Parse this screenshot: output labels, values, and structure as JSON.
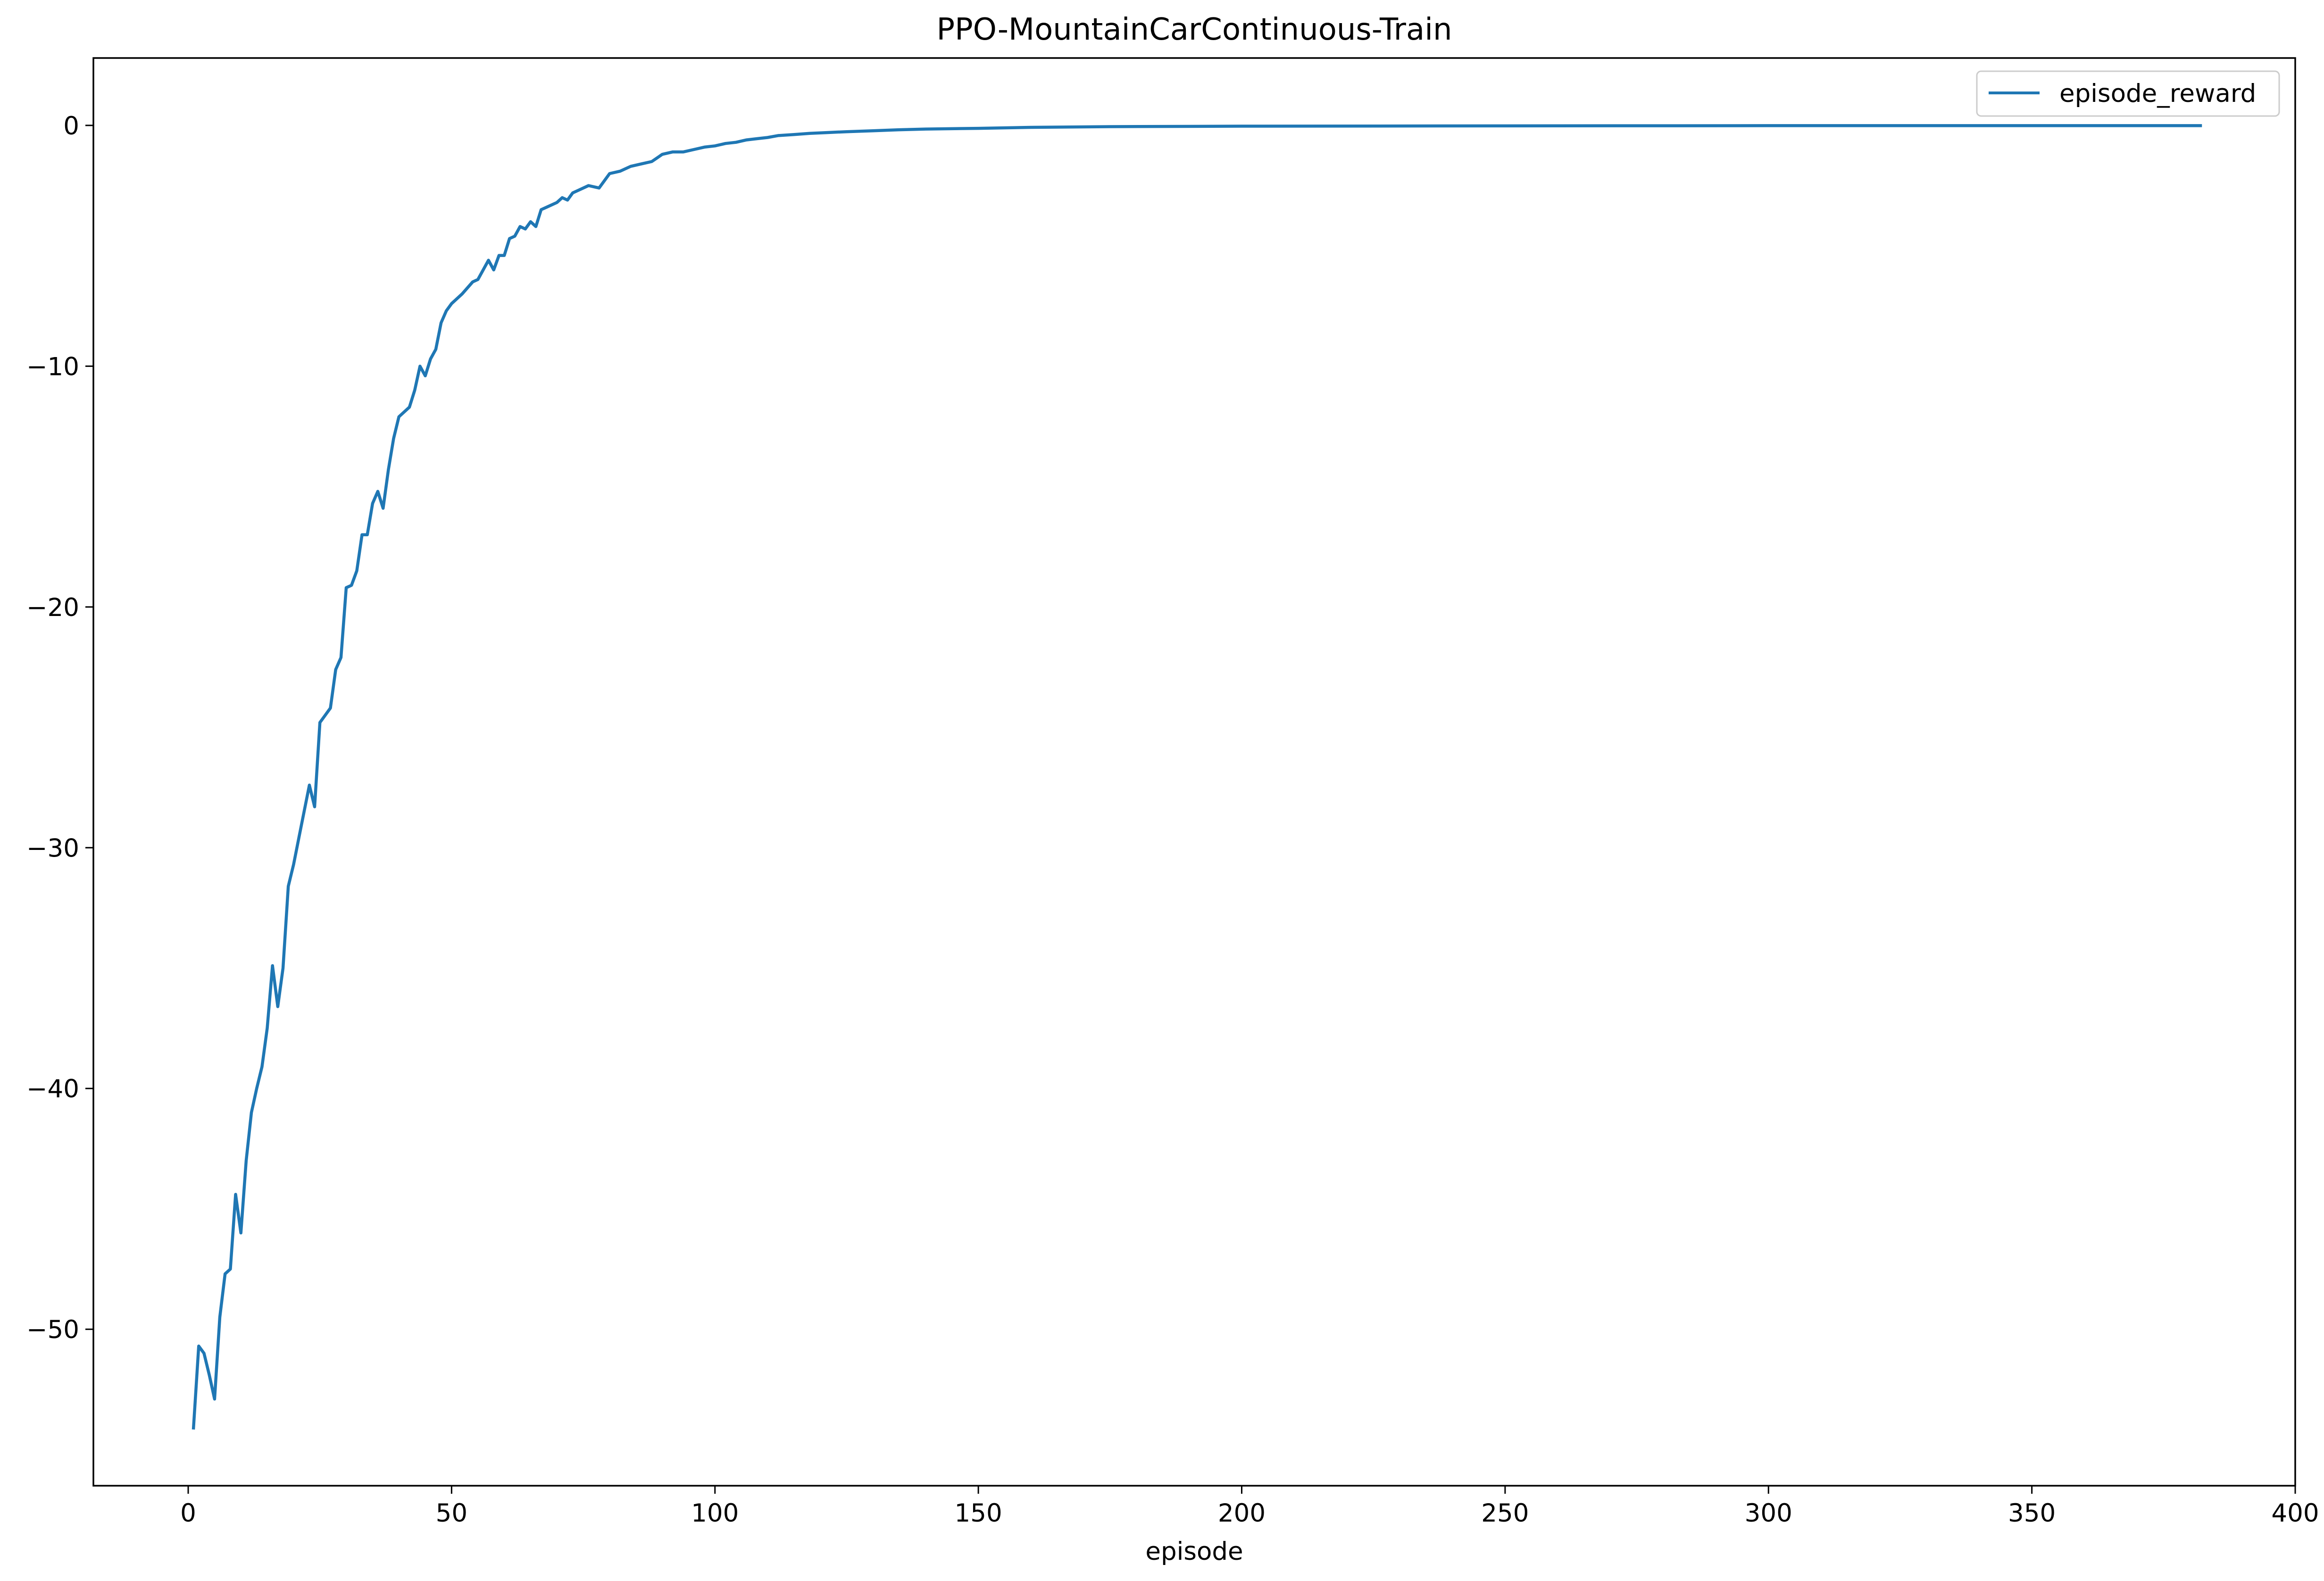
{
  "chart_data": {
    "type": "line",
    "title": "PPO-MountainCarContinuous-Train",
    "xlabel": "episode",
    "ylabel": "",
    "xlim": [
      -18,
      400
    ],
    "ylim": [
      -56.5,
      2.8
    ],
    "xticks": [
      0,
      50,
      100,
      150,
      200,
      250,
      300,
      350,
      400
    ],
    "yticks": [
      0,
      -10,
      -20,
      -30,
      -40,
      -50
    ],
    "ytick_labels": [
      "0",
      "−10",
      "−20",
      "−30",
      "−40",
      "−50"
    ],
    "grid": false,
    "legend": {
      "placement": "top-right",
      "entries": [
        "episode_reward"
      ]
    },
    "series": [
      {
        "name": "episode_reward",
        "color": "#1f77b4",
        "points": [
          [
            1,
            -54.1
          ],
          [
            2,
            -50.7
          ],
          [
            3,
            -51.0
          ],
          [
            4,
            -51.9
          ],
          [
            5,
            -52.9
          ],
          [
            6,
            -49.5
          ],
          [
            7,
            -47.7
          ],
          [
            8,
            -47.5
          ],
          [
            9,
            -44.4
          ],
          [
            10,
            -46.0
          ],
          [
            11,
            -43.0
          ],
          [
            12,
            -41.0
          ],
          [
            13,
            -40.0
          ],
          [
            14,
            -39.1
          ],
          [
            15,
            -37.5
          ],
          [
            16,
            -34.9
          ],
          [
            17,
            -36.6
          ],
          [
            18,
            -35.0
          ],
          [
            19,
            -31.6
          ],
          [
            20,
            -30.7
          ],
          [
            21,
            -29.6
          ],
          [
            22,
            -28.5
          ],
          [
            23,
            -27.4
          ],
          [
            24,
            -28.3
          ],
          [
            25,
            -24.8
          ],
          [
            26,
            -24.5
          ],
          [
            27,
            -24.2
          ],
          [
            28,
            -22.6
          ],
          [
            29,
            -22.1
          ],
          [
            30,
            -19.2
          ],
          [
            31,
            -19.1
          ],
          [
            32,
            -18.5
          ],
          [
            33,
            -17.0
          ],
          [
            34,
            -17.0
          ],
          [
            35,
            -15.7
          ],
          [
            36,
            -15.2
          ],
          [
            37,
            -15.9
          ],
          [
            38,
            -14.3
          ],
          [
            39,
            -13.0
          ],
          [
            40,
            -12.1
          ],
          [
            41,
            -11.9
          ],
          [
            42,
            -11.7
          ],
          [
            43,
            -11.0
          ],
          [
            44,
            -10.0
          ],
          [
            45,
            -10.4
          ],
          [
            46,
            -9.7
          ],
          [
            47,
            -9.3
          ],
          [
            48,
            -8.2
          ],
          [
            49,
            -7.7
          ],
          [
            50,
            -7.4
          ],
          [
            52,
            -7.0
          ],
          [
            54,
            -6.5
          ],
          [
            55,
            -6.4
          ],
          [
            56,
            -6.0
          ],
          [
            57,
            -5.6
          ],
          [
            58,
            -6.0
          ],
          [
            59,
            -5.4
          ],
          [
            60,
            -5.4
          ],
          [
            61,
            -4.7
          ],
          [
            62,
            -4.6
          ],
          [
            63,
            -4.2
          ],
          [
            64,
            -4.3
          ],
          [
            65,
            -4.0
          ],
          [
            66,
            -4.2
          ],
          [
            67,
            -3.5
          ],
          [
            68,
            -3.4
          ],
          [
            70,
            -3.2
          ],
          [
            71,
            -3.0
          ],
          [
            72,
            -3.1
          ],
          [
            73,
            -2.8
          ],
          [
            74,
            -2.7
          ],
          [
            76,
            -2.5
          ],
          [
            78,
            -2.6
          ],
          [
            80,
            -2.0
          ],
          [
            82,
            -1.9
          ],
          [
            84,
            -1.7
          ],
          [
            86,
            -1.6
          ],
          [
            88,
            -1.5
          ],
          [
            90,
            -1.2
          ],
          [
            92,
            -1.1
          ],
          [
            94,
            -1.1
          ],
          [
            96,
            -1.0
          ],
          [
            98,
            -0.9
          ],
          [
            100,
            -0.85
          ],
          [
            102,
            -0.75
          ],
          [
            104,
            -0.7
          ],
          [
            106,
            -0.6
          ],
          [
            108,
            -0.55
          ],
          [
            110,
            -0.5
          ],
          [
            112,
            -0.42
          ],
          [
            115,
            -0.38
          ],
          [
            118,
            -0.33
          ],
          [
            121,
            -0.3
          ],
          [
            125,
            -0.26
          ],
          [
            130,
            -0.22
          ],
          [
            135,
            -0.18
          ],
          [
            140,
            -0.15
          ],
          [
            150,
            -0.12
          ],
          [
            160,
            -0.08
          ],
          [
            175,
            -0.05
          ],
          [
            200,
            -0.03
          ],
          [
            250,
            -0.02
          ],
          [
            300,
            -0.01
          ],
          [
            350,
            -0.01
          ],
          [
            382,
            -0.01
          ]
        ]
      }
    ]
  }
}
